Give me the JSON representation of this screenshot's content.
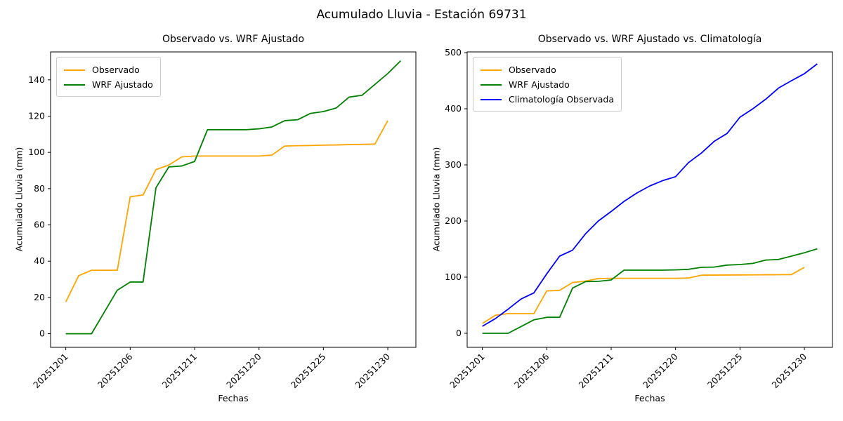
{
  "figure": {
    "suptitle": "Acumulado Lluvia - Estación 69731",
    "background": "#ffffff"
  },
  "chart_data": [
    {
      "type": "line",
      "title": "Observado vs. WRF Ajustado",
      "xlabel": "Fechas",
      "ylabel": "Acumulado Lluvia (mm)",
      "legend_position": "upper-left",
      "grid": false,
      "x_tick_positions": [
        0,
        5,
        10,
        15,
        20,
        25
      ],
      "x_tick_labels": [
        "20251201",
        "20251206",
        "20251211",
        "20251220",
        "20251225",
        "20251230"
      ],
      "x_tick_rotation": 45,
      "n_points": 27,
      "xlim": [
        -1.18,
        27.18
      ],
      "y_ticks": [
        0,
        20,
        40,
        60,
        80,
        100,
        120,
        140
      ],
      "ylim": [
        -7.5,
        155.4
      ],
      "series": [
        {
          "name": "Observado",
          "color": "#ffa500",
          "values": [
            17.5,
            32,
            35,
            35,
            35,
            75.5,
            76.5,
            90.5,
            93,
            97.5,
            98,
            98,
            98,
            98,
            98,
            98,
            98.5,
            103.5,
            103.7,
            103.8,
            104,
            104.1,
            104.3,
            104.4,
            104.6,
            117.5
          ]
        },
        {
          "name": "WRF Ajustado",
          "color": "#008000",
          "values": [
            0,
            0,
            0,
            12,
            24,
            28.5,
            28.5,
            80.5,
            92,
            92.5,
            95,
            112.5,
            112.5,
            112.5,
            112.5,
            113,
            114,
            117.5,
            118,
            121.5,
            122.5,
            124.5,
            130.5,
            131.5,
            137.5,
            143.5,
            150.5
          ]
        }
      ]
    },
    {
      "type": "line",
      "title": "Observado vs. WRF Ajustado vs. Climatología",
      "xlabel": "Fechas",
      "ylabel": "Acumulado Lluvia (mm)",
      "legend_position": "upper-left",
      "grid": false,
      "x_tick_positions": [
        0,
        5,
        10,
        15,
        20,
        25
      ],
      "x_tick_labels": [
        "20251201",
        "20251206",
        "20251211",
        "20251220",
        "20251225",
        "20251230"
      ],
      "x_tick_rotation": 45,
      "n_points": 27,
      "xlim": [
        -1.18,
        27.18
      ],
      "y_ticks": [
        0,
        100,
        200,
        300,
        400,
        500
      ],
      "ylim": [
        -25,
        501.25
      ],
      "series": [
        {
          "name": "Observado",
          "color": "#ffa500",
          "values": [
            17.5,
            32,
            35,
            35,
            35,
            75.5,
            76.5,
            90.5,
            93,
            97.5,
            98,
            98,
            98,
            98,
            98,
            98,
            98.5,
            103.5,
            103.7,
            103.8,
            104,
            104.1,
            104.3,
            104.4,
            104.6,
            117.5
          ]
        },
        {
          "name": "WRF Ajustado",
          "color": "#008000",
          "values": [
            0,
            0,
            0,
            12,
            24,
            28.5,
            28.5,
            80.5,
            92,
            92.5,
            95,
            112.5,
            112.5,
            112.5,
            112.5,
            113,
            114,
            117.5,
            118,
            121.5,
            122.5,
            124.5,
            130.5,
            131.5,
            137.5,
            143.5,
            150.5
          ]
        },
        {
          "name": "Climatología Observada",
          "color": "#0000ff",
          "values": [
            12.5,
            26,
            43,
            61,
            72,
            106,
            137.5,
            148,
            177,
            200,
            217,
            235,
            250,
            262.5,
            272,
            279,
            304,
            321,
            342,
            356,
            385,
            400,
            417,
            437,
            450,
            462.5,
            480
          ]
        }
      ]
    }
  ]
}
